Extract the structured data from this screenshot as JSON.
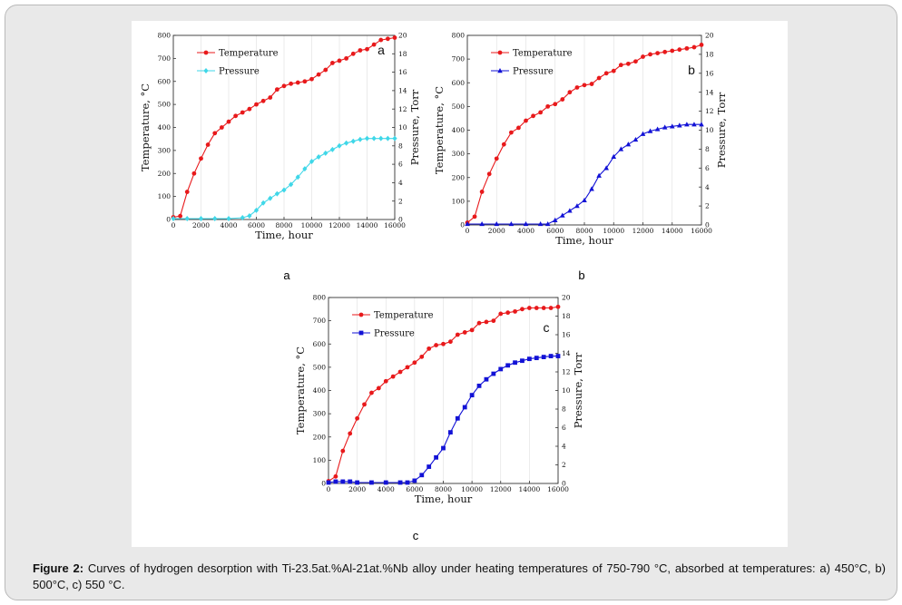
{
  "caption": {
    "label": "Figure 2:",
    "text": "Curves of hydrogen desorption with Ti-23.5at.%Al-21at.%Nb alloy under heating temperatures of 750-790 °C, absorbed at temperatures: a) 450°C, b) 500°C, c) 550 °C."
  },
  "panel_labels": [
    "a",
    "b",
    "c"
  ],
  "chart_data": [
    {
      "type": "line",
      "panel": "a",
      "xlabel": "Time, hour",
      "ylabel": "Temperature, °C",
      "y2label": "Pressure, Torr",
      "xlim": [
        0,
        16000
      ],
      "ylim": [
        0,
        800
      ],
      "y2lim": [
        0,
        20
      ],
      "xticks": [
        0,
        2000,
        4000,
        6000,
        8000,
        10000,
        12000,
        14000,
        16000
      ],
      "yticks": [
        0,
        100,
        200,
        300,
        400,
        500,
        600,
        700,
        800
      ],
      "y2ticks": [
        0,
        2,
        4,
        6,
        8,
        10,
        12,
        14,
        16,
        18,
        20
      ],
      "legend_position": "top-left",
      "series": [
        {
          "name": "Temperature",
          "axis": "left",
          "color": "#e8191b",
          "marker": "circle",
          "x": [
            0,
            500,
            1000,
            1500,
            2000,
            2500,
            3000,
            3500,
            4000,
            4500,
            5000,
            5500,
            6000,
            6500,
            7000,
            7500,
            8000,
            8500,
            9000,
            9500,
            10000,
            10500,
            11000,
            11500,
            12000,
            12500,
            13000,
            13500,
            14000,
            14500,
            15000,
            15500,
            16000
          ],
          "values": [
            10,
            15,
            120,
            200,
            265,
            325,
            375,
            400,
            425,
            450,
            465,
            480,
            500,
            515,
            530,
            565,
            580,
            590,
            595,
            600,
            610,
            630,
            650,
            680,
            690,
            700,
            720,
            735,
            740,
            760,
            780,
            785,
            790
          ]
        },
        {
          "name": "Pressure",
          "axis": "right",
          "color": "#3fd7e8",
          "marker": "diamond",
          "x": [
            0,
            1000,
            2000,
            3000,
            4000,
            5000,
            5500,
            6000,
            6500,
            7000,
            7500,
            8000,
            8500,
            9000,
            9500,
            10000,
            10500,
            11000,
            11500,
            12000,
            12500,
            13000,
            13500,
            14000,
            14500,
            15000,
            15500,
            16000
          ],
          "values": [
            0.1,
            0.1,
            0.1,
            0.1,
            0.1,
            0.2,
            0.4,
            1.0,
            1.8,
            2.3,
            2.8,
            3.2,
            3.8,
            4.6,
            5.5,
            6.3,
            6.8,
            7.2,
            7.6,
            8.0,
            8.3,
            8.5,
            8.7,
            8.8,
            8.8,
            8.8,
            8.8,
            8.8
          ]
        }
      ]
    },
    {
      "type": "line",
      "panel": "b",
      "xlabel": "Time, hour",
      "ylabel": "Temperature, °C",
      "y2label": "Pressure, Torr",
      "xlim": [
        0,
        16000
      ],
      "ylim": [
        0,
        800
      ],
      "y2lim": [
        0,
        20
      ],
      "xticks": [
        0,
        2000,
        4000,
        6000,
        8000,
        10000,
        12000,
        14000,
        16000
      ],
      "yticks": [
        0,
        100,
        200,
        300,
        400,
        500,
        600,
        700,
        800
      ],
      "y2ticks": [
        0,
        2,
        4,
        6,
        8,
        10,
        12,
        14,
        16,
        18,
        20
      ],
      "legend_position": "top-left",
      "series": [
        {
          "name": "Temperature",
          "axis": "left",
          "color": "#e8191b",
          "marker": "circle",
          "x": [
            0,
            500,
            1000,
            1500,
            2000,
            2500,
            3000,
            3500,
            4000,
            4500,
            5000,
            5500,
            6000,
            6500,
            7000,
            7500,
            8000,
            8500,
            9000,
            9500,
            10000,
            10500,
            11000,
            11500,
            12000,
            12500,
            13000,
            13500,
            14000,
            14500,
            15000,
            15500,
            16000
          ],
          "values": [
            10,
            35,
            140,
            215,
            280,
            340,
            390,
            410,
            440,
            460,
            475,
            500,
            510,
            530,
            560,
            580,
            590,
            595,
            620,
            640,
            650,
            675,
            680,
            690,
            710,
            720,
            725,
            730,
            735,
            740,
            745,
            750,
            760
          ]
        },
        {
          "name": "Pressure",
          "axis": "right",
          "color": "#1212d6",
          "marker": "triangle",
          "x": [
            0,
            1000,
            2000,
            3000,
            4000,
            5000,
            5500,
            6000,
            6500,
            7000,
            7500,
            8000,
            8500,
            9000,
            9500,
            10000,
            10500,
            11000,
            11500,
            12000,
            12500,
            13000,
            13500,
            14000,
            14500,
            15000,
            15500,
            16000
          ],
          "values": [
            0.1,
            0.1,
            0.1,
            0.1,
            0.1,
            0.1,
            0.1,
            0.5,
            1.0,
            1.5,
            2.0,
            2.6,
            3.8,
            5.2,
            6.0,
            7.2,
            8.0,
            8.5,
            9.0,
            9.6,
            9.9,
            10.1,
            10.3,
            10.4,
            10.5,
            10.6,
            10.6,
            10.6
          ]
        }
      ]
    },
    {
      "type": "line",
      "panel": "c",
      "xlabel": "Time, hour",
      "ylabel": "Temperature, °C",
      "y2label": "Pressure, Torr",
      "xlim": [
        0,
        16000
      ],
      "ylim": [
        0,
        800
      ],
      "y2lim": [
        0,
        20
      ],
      "xticks": [
        0,
        2000,
        4000,
        6000,
        8000,
        10000,
        12000,
        14000,
        16000
      ],
      "yticks": [
        0,
        100,
        200,
        300,
        400,
        500,
        600,
        700,
        800
      ],
      "y2ticks": [
        0,
        2,
        4,
        6,
        8,
        10,
        12,
        14,
        16,
        18,
        20
      ],
      "legend_position": "top-left",
      "series": [
        {
          "name": "Temperature",
          "axis": "left",
          "color": "#e8191b",
          "marker": "circle",
          "x": [
            0,
            500,
            1000,
            1500,
            2000,
            2500,
            3000,
            3500,
            4000,
            4500,
            5000,
            5500,
            6000,
            6500,
            7000,
            7500,
            8000,
            8500,
            9000,
            9500,
            10000,
            10500,
            11000,
            11500,
            12000,
            12500,
            13000,
            13500,
            14000,
            14500,
            15000,
            15500,
            16000
          ],
          "values": [
            10,
            30,
            140,
            215,
            280,
            340,
            390,
            410,
            440,
            460,
            480,
            500,
            520,
            545,
            580,
            595,
            600,
            610,
            640,
            650,
            660,
            690,
            695,
            700,
            730,
            735,
            740,
            750,
            755,
            755,
            755,
            755,
            760
          ]
        },
        {
          "name": "Pressure",
          "axis": "right",
          "color": "#1212d6",
          "marker": "square",
          "x": [
            0,
            500,
            1000,
            1500,
            2000,
            3000,
            4000,
            5000,
            5500,
            6000,
            6500,
            7000,
            7500,
            8000,
            8500,
            9000,
            9500,
            10000,
            10500,
            11000,
            11500,
            12000,
            12500,
            13000,
            13500,
            14000,
            14500,
            15000,
            15500,
            16000
          ],
          "values": [
            0.1,
            0.2,
            0.2,
            0.2,
            0.1,
            0.1,
            0.1,
            0.1,
            0.1,
            0.3,
            0.9,
            1.8,
            2.8,
            3.8,
            5.5,
            7.0,
            8.2,
            9.5,
            10.5,
            11.2,
            11.8,
            12.3,
            12.7,
            13.0,
            13.2,
            13.4,
            13.5,
            13.6,
            13.7,
            13.7
          ]
        }
      ]
    }
  ]
}
